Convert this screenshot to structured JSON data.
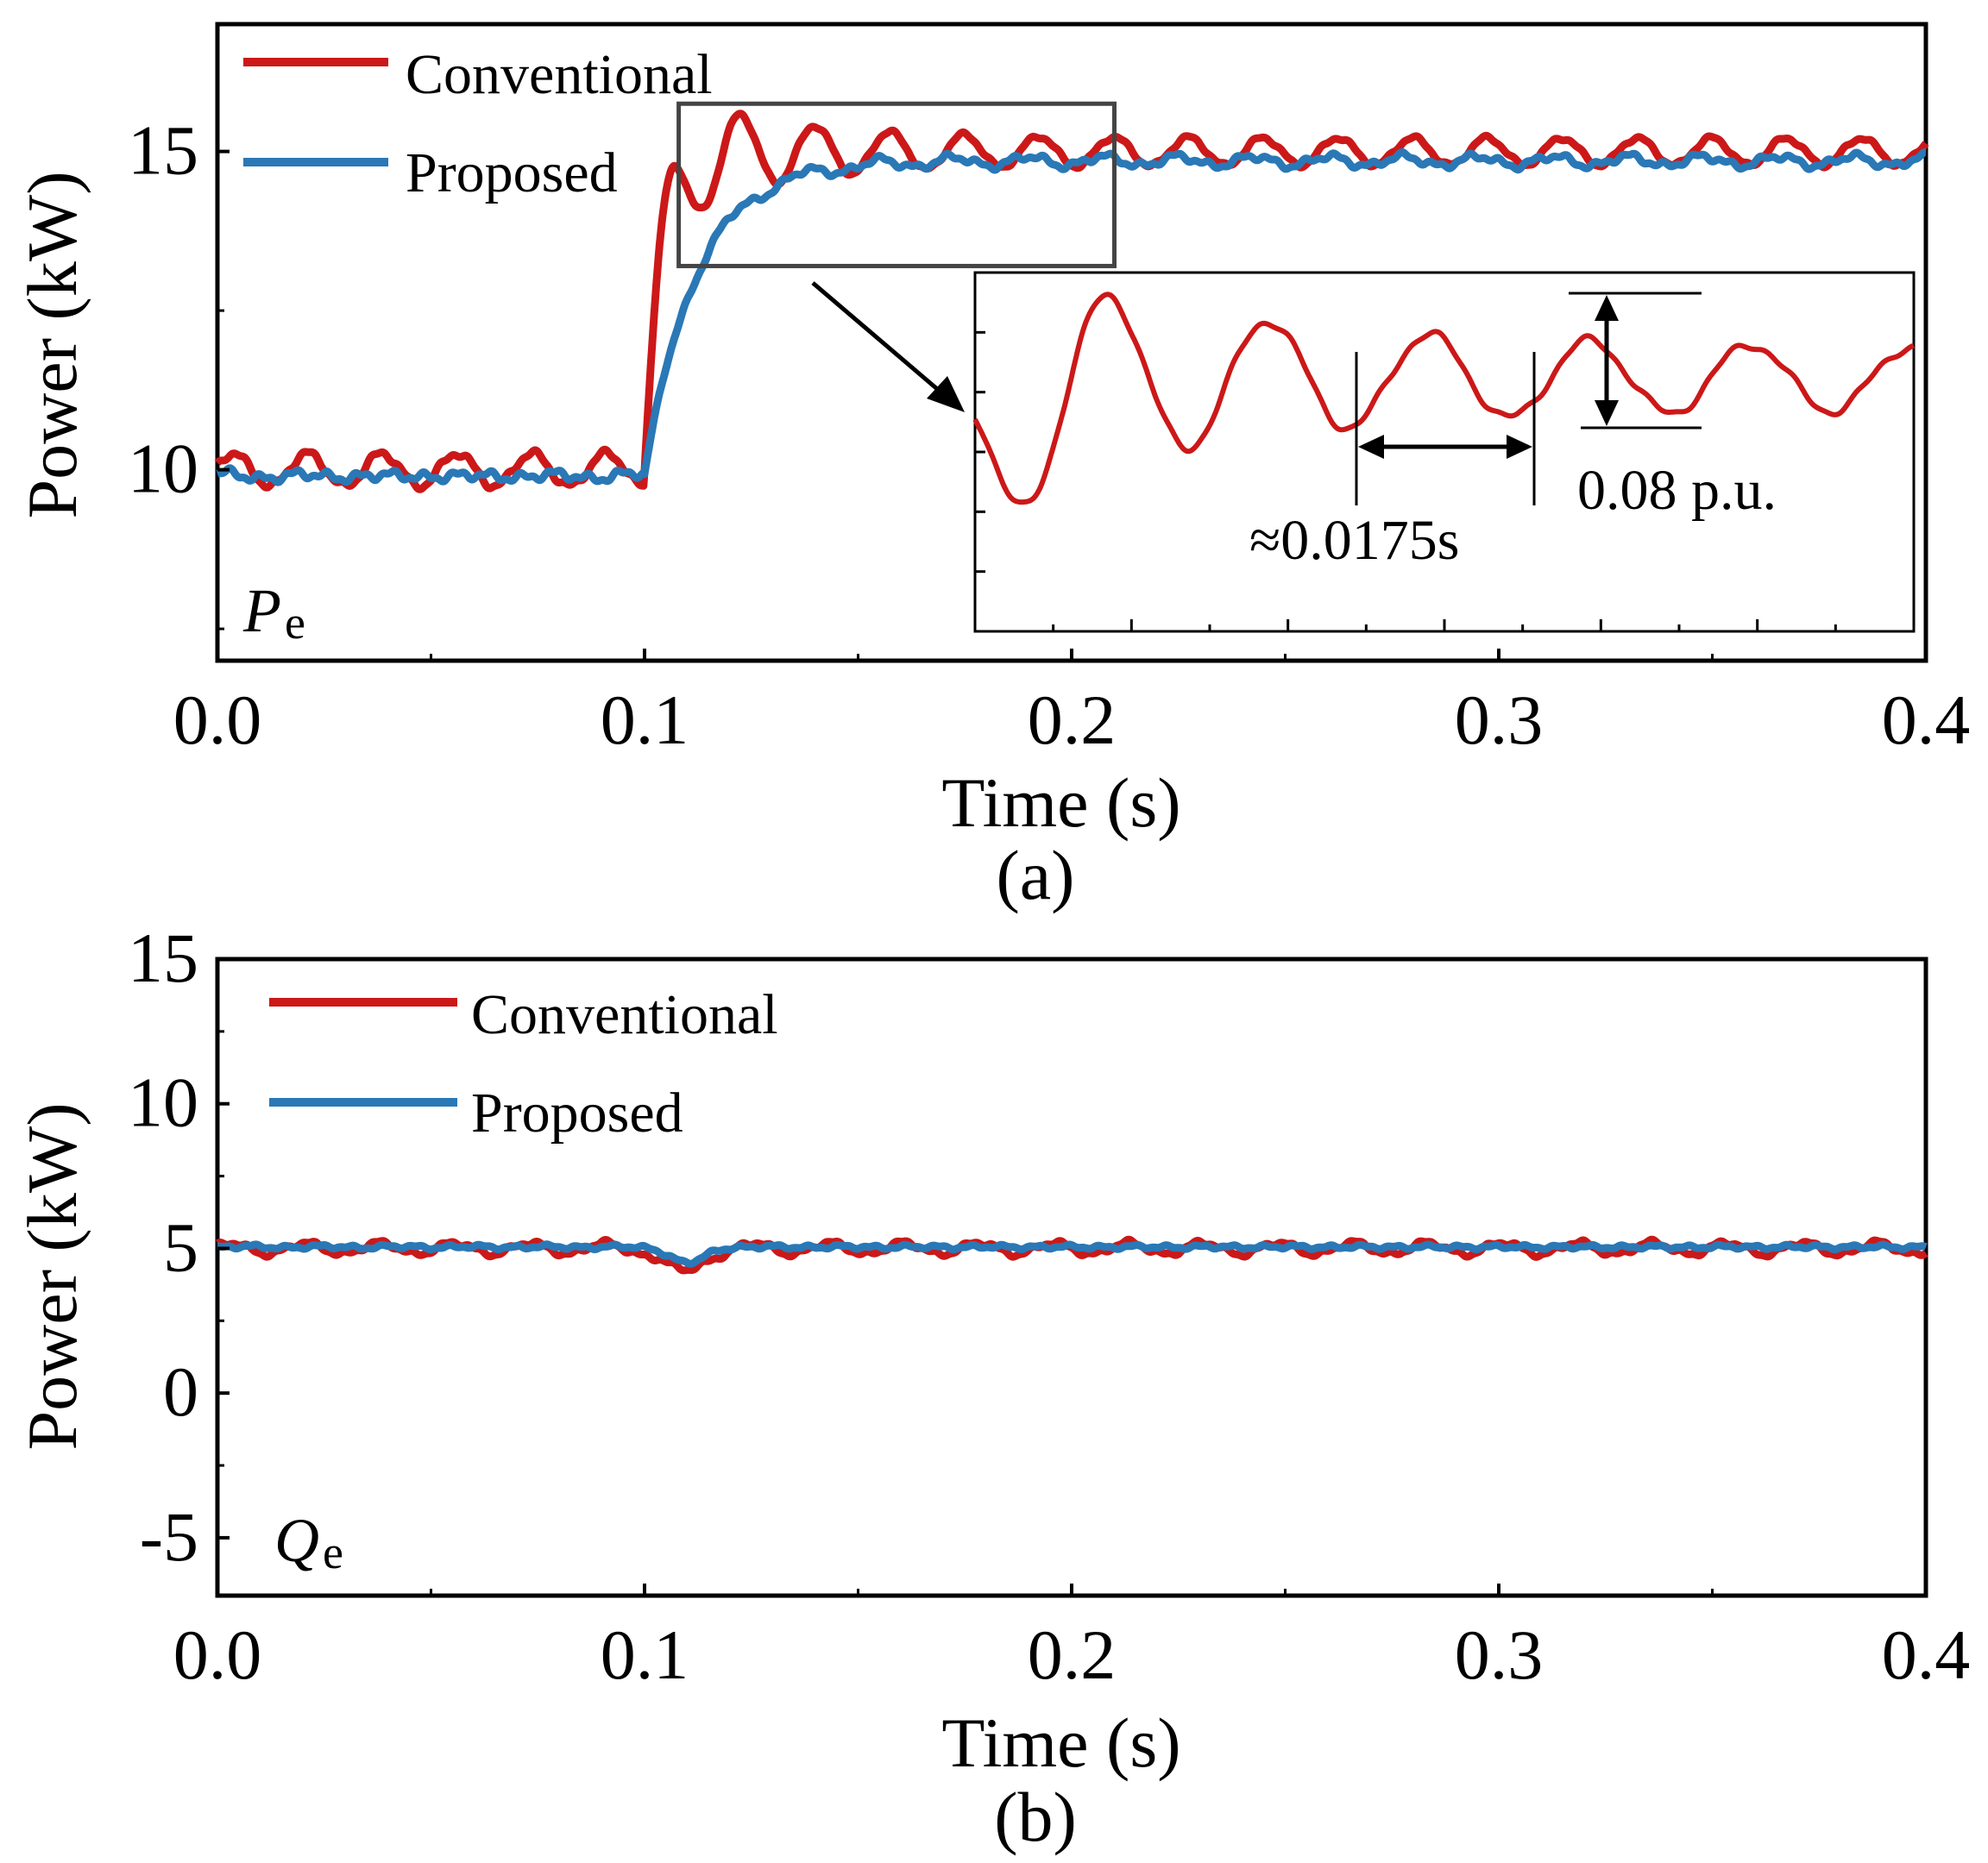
{
  "colors": {
    "conventional": "#cc1818",
    "proposed": "#2a78b6",
    "axis": "#000000",
    "zoom_box": "#444444"
  },
  "chart_data": [
    {
      "type": "line",
      "panel_label": "(a)",
      "xlabel": "Time (s)",
      "ylabel": "Power (kW)",
      "xlim": [
        0,
        0.4
      ],
      "ylim": [
        7,
        17
      ],
      "x_ticks": [
        "0.0",
        "0.1",
        "0.2",
        "0.3",
        "0.4"
      ],
      "x_tick_values": [
        0,
        0.1,
        0.2,
        0.3,
        0.4
      ],
      "y_ticks": [
        "10",
        "15"
      ],
      "y_tick_values": [
        10,
        15
      ],
      "corner_label": {
        "main": "P",
        "sub": "e"
      },
      "legend": [
        "Conventional",
        "Proposed"
      ],
      "grid": false,
      "series": [
        {
          "name": "Conventional",
          "model": "step_oscillation",
          "before": 10.0,
          "after": 15.0,
          "step_time": 0.1,
          "rise_tau": 0.004,
          "base_ripple": 0.28,
          "transient_amp": 0.95,
          "damping": 0.025,
          "period": 0.0175,
          "steady_ripple": 0.22
        },
        {
          "name": "Proposed",
          "model": "step_smooth",
          "before": 9.9,
          "after": 14.85,
          "step_time": 0.1,
          "rise_tau": 0.012,
          "base_ripple": 0.18,
          "steady_ripple": 0.14
        }
      ],
      "zoom_region": {
        "x": [
          0.108,
          0.21
        ],
        "y": [
          13.2,
          15.75
        ]
      },
      "inset": {
        "x_range": [
          0.108,
          0.21
        ],
        "y_range": [
          13.2,
          15.75
        ],
        "annotations": {
          "period": "≈0.0175s",
          "amplitude": "0.08 p.u."
        }
      }
    },
    {
      "type": "line",
      "panel_label": "(b)",
      "xlabel": "Time (s)",
      "ylabel": "Power (kW)",
      "xlim": [
        0,
        0.4
      ],
      "ylim": [
        -7,
        15
      ],
      "x_ticks": [
        "0.0",
        "0.1",
        "0.2",
        "0.3",
        "0.4"
      ],
      "x_tick_values": [
        0,
        0.1,
        0.2,
        0.3,
        0.4
      ],
      "y_ticks": [
        "15",
        "10",
        "5",
        "0",
        "-5"
      ],
      "y_tick_values": [
        15,
        10,
        5,
        0,
        -5
      ],
      "corner_label": {
        "main": "Q",
        "sub": "e"
      },
      "legend": [
        "Conventional",
        "Proposed"
      ],
      "grid": false,
      "series": [
        {
          "name": "Conventional",
          "model": "flat_dip",
          "level": 5.0,
          "ripple": 0.22,
          "dip_time": 0.109,
          "dip_depth": 0.9
        },
        {
          "name": "Proposed",
          "model": "flat_dip",
          "level": 5.05,
          "ripple": 0.16,
          "dip_time": 0.11,
          "dip_depth": 0.55
        }
      ]
    }
  ]
}
